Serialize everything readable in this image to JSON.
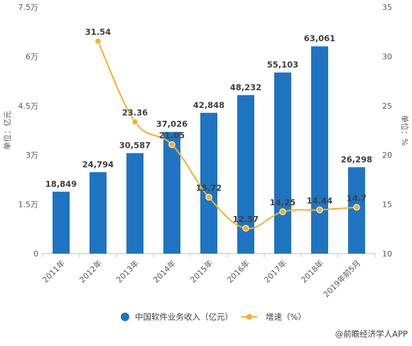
{
  "chart_data": {
    "type": "bar",
    "categories": [
      "2011年",
      "2012年",
      "2013年",
      "2014年",
      "2015年",
      "2016年",
      "2017年",
      "2018年",
      "2019年前5月"
    ],
    "series": [
      {
        "name": "中国软件业务收入（亿元）",
        "type": "bar",
        "axis": "left",
        "color": "#1f74c1",
        "values": [
          18849,
          24794,
          30587,
          37026,
          42848,
          48232,
          55103,
          63061,
          26298
        ],
        "labels": [
          "18,849",
          "24,794",
          "30,587",
          "37,026",
          "42,848",
          "48,232",
          "55,103",
          "63,061",
          "26,298"
        ]
      },
      {
        "name": "增速（%）",
        "type": "line",
        "axis": "right",
        "color": "#f0b22a",
        "values": [
          null,
          31.54,
          23.36,
          21.05,
          15.72,
          12.57,
          14.25,
          14.44,
          14.7
        ],
        "labels": [
          "",
          "31.54",
          "23.36",
          "21.05",
          "15.72",
          "12.57",
          "14.25",
          "14.44",
          "14.7"
        ]
      }
    ],
    "left_axis": {
      "label": "单位：亿元",
      "ylim": [
        0,
        75000
      ],
      "ticks": [
        0,
        15000,
        30000,
        45000,
        60000,
        75000
      ],
      "tick_labels": [
        "0",
        "1.5万",
        "3万",
        "4.5万",
        "6万",
        "7.5万"
      ]
    },
    "right_axis": {
      "label": "单位：%",
      "ylim": [
        10,
        35
      ],
      "ticks": [
        10,
        15,
        20,
        25,
        30,
        35
      ],
      "tick_labels": [
        "10",
        "15",
        "20",
        "25",
        "30",
        "35"
      ]
    },
    "legend_position": "bottom",
    "grid": false
  },
  "footer": {
    "source": "@前瞻经济学人APP"
  }
}
